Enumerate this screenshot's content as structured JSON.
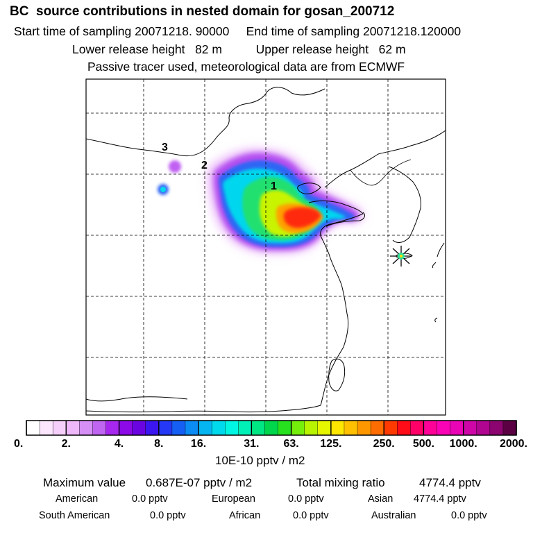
{
  "header": {
    "title": "BC  source contributions in nested domain for gosan_200712",
    "start_label": "Start time of sampling",
    "start_value": "20071218. 90000",
    "end_label": "End time of sampling",
    "end_value": "20071218.120000",
    "lower_label": "Lower release height",
    "lower_value": "82 m",
    "upper_label": "Upper release height",
    "upper_value": "62 m",
    "info": "Passive tracer used, meteorological data are from ECMWF"
  },
  "map": {
    "source_labels": [
      "3",
      "2",
      "1"
    ],
    "receptor": "Gosan",
    "receptor_icon": "star-marker-icon"
  },
  "colorbar": {
    "colors": [
      "#ffffff",
      "#fbe6fd",
      "#f6d0fb",
      "#efb8fa",
      "#d58ff5",
      "#c064f2",
      "#a727ee",
      "#8c09e8",
      "#6a05e2",
      "#3b16f0",
      "#2438f5",
      "#155ff4",
      "#0b8cf4",
      "#05b5f1",
      "#00d9ec",
      "#00f6e2",
      "#00f0b8",
      "#00e682",
      "#00d64b",
      "#27e01e",
      "#76ee0c",
      "#b8f400",
      "#e6f500",
      "#fde600",
      "#ffc000",
      "#ff9800",
      "#ff6c00",
      "#ff3a00",
      "#ff0c18",
      "#ff0068",
      "#ff0098",
      "#fa02b6",
      "#e904b6",
      "#ce06a8",
      "#b00590",
      "#8c0470",
      "#5c0044"
    ],
    "major_ticks": [
      0,
      3,
      7,
      10,
      13,
      17,
      20,
      23,
      27,
      30,
      33,
      37
    ],
    "tick_labels": [
      "0.",
      "2.",
      "4.",
      "8.",
      "16.",
      "31.",
      "63.",
      "125.",
      "250.",
      "500.",
      "1000.",
      "2000."
    ],
    "units": "10E-10 pptv / m2"
  },
  "stats": {
    "max_label": "Maximum value",
    "max_value": "0.687E-07 pptv / m2",
    "total_label": "Total mixing ratio",
    "total_value": "4774.4 pptv",
    "regions": [
      {
        "name": "American",
        "value": "0.0 pptv"
      },
      {
        "name": "European",
        "value": "0.0 pptv"
      },
      {
        "name": "Asian",
        "value": "4774.4 pptv"
      },
      {
        "name": "South American",
        "value": "0.0 pptv"
      },
      {
        "name": "African",
        "value": "0.0 pptv"
      },
      {
        "name": "Australian",
        "value": "0.0 pptv"
      }
    ]
  }
}
